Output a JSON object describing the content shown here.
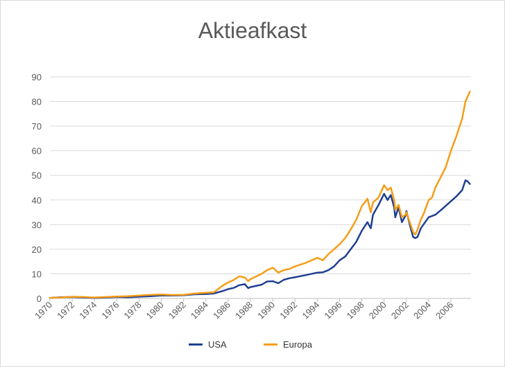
{
  "chart_data": {
    "type": "line",
    "title": "Aktieafkast",
    "xlabel": "",
    "ylabel": "",
    "ylim": [
      0,
      90
    ],
    "yticks": [
      0,
      10,
      20,
      30,
      40,
      50,
      60,
      70,
      80,
      90
    ],
    "xlim": [
      1970,
      2007.8
    ],
    "xticks": [
      1970,
      1972,
      1974,
      1976,
      1978,
      1980,
      1982,
      1984,
      1986,
      1988,
      1990,
      1992,
      1994,
      1996,
      1998,
      2000,
      2002,
      2004,
      2006
    ],
    "grid": "horizontal",
    "legend": "bottom",
    "series": [
      {
        "name": "USA",
        "color": "#1f3f91",
        "x": [
          1970,
          1971,
          1972,
          1973,
          1974,
          1975,
          1976,
          1977,
          1978,
          1979,
          1980,
          1981,
          1982,
          1983,
          1984,
          1984.7,
          1985,
          1985.5,
          1986,
          1986.5,
          1987,
          1987.5,
          1987.8,
          1988,
          1989,
          1989.5,
          1990,
          1990.5,
          1991,
          1991.5,
          1992,
          1993,
          1994,
          1994.5,
          1995,
          1995.5,
          1996,
          1996.5,
          1997,
          1997.5,
          1998,
          1998.5,
          1998.8,
          1999,
          1999.5,
          2000,
          2000.3,
          2000.6,
          2000.9,
          2001,
          2001.3,
          2001.6,
          2001.9,
          2002,
          2002.3,
          2002.6,
          2002.8,
          2003,
          2003.3,
          2003.6,
          2004,
          2004.3,
          2004.6,
          2005,
          2005.5,
          2006,
          2006.5,
          2007,
          2007.3,
          2007.5,
          2007.7
        ],
        "values": [
          0.2,
          0.5,
          0.6,
          0.4,
          0.2,
          0.4,
          0.6,
          0.5,
          0.7,
          0.9,
          1.2,
          1.2,
          1.3,
          1.7,
          1.8,
          2.0,
          2.4,
          3.0,
          3.8,
          4.3,
          5.4,
          5.8,
          4.2,
          4.6,
          5.6,
          6.9,
          7.0,
          6.2,
          7.6,
          8.2,
          8.6,
          9.5,
          10.5,
          10.6,
          11.5,
          13.0,
          15.5,
          17.0,
          20.0,
          23.0,
          27.5,
          31.0,
          28.5,
          34.0,
          38.0,
          42.5,
          40.0,
          42.0,
          37.0,
          33.0,
          37.0,
          31.0,
          33.5,
          35.5,
          30.0,
          25.0,
          24.5,
          25.0,
          28.5,
          30.5,
          33.0,
          33.5,
          34.0,
          35.5,
          37.5,
          39.5,
          41.5,
          44.0,
          48.0,
          47.5,
          46.5
        ]
      },
      {
        "name": "Europa",
        "color": "#f59d17",
        "x": [
          1970,
          1971,
          1972,
          1973,
          1974,
          1975,
          1976,
          1977,
          1978,
          1979,
          1980,
          1981,
          1982,
          1983,
          1984,
          1984.7,
          1985,
          1985.5,
          1986,
          1986.5,
          1987,
          1987.5,
          1987.8,
          1988,
          1989,
          1989.5,
          1990,
          1990.5,
          1991,
          1991.5,
          1992,
          1993,
          1994,
          1994.5,
          1995,
          1995.5,
          1996,
          1996.5,
          1997,
          1997.5,
          1998,
          1998.5,
          1998.8,
          1999,
          1999.5,
          2000,
          2000.3,
          2000.6,
          2000.9,
          2001,
          2001.3,
          2001.6,
          2001.9,
          2002,
          2002.3,
          2002.6,
          2002.8,
          2003,
          2003.3,
          2003.6,
          2004,
          2004.3,
          2004.6,
          2005,
          2005.5,
          2006,
          2006.5,
          2007,
          2007.3,
          2007.5,
          2007.7
        ],
        "values": [
          0.2,
          0.4,
          0.7,
          0.6,
          0.4,
          0.6,
          0.8,
          0.9,
          1.2,
          1.5,
          1.6,
          1.4,
          1.5,
          2.0,
          2.3,
          2.5,
          3.5,
          5.2,
          6.5,
          7.5,
          9.0,
          8.5,
          7.0,
          7.8,
          10.0,
          11.5,
          12.5,
          10.5,
          11.5,
          12.0,
          13.0,
          14.5,
          16.5,
          15.5,
          18.0,
          20.0,
          22.0,
          24.5,
          28.0,
          32.0,
          37.5,
          40.5,
          35.0,
          39.0,
          41.0,
          46.0,
          44.0,
          45.0,
          40.0,
          36.0,
          38.0,
          33.0,
          34.0,
          35.0,
          31.0,
          27.0,
          26.0,
          28.0,
          32.0,
          35.0,
          40.0,
          41.0,
          45.0,
          48.5,
          53.0,
          60.0,
          66.0,
          73.0,
          80.0,
          82.0,
          84.0
        ]
      }
    ]
  }
}
